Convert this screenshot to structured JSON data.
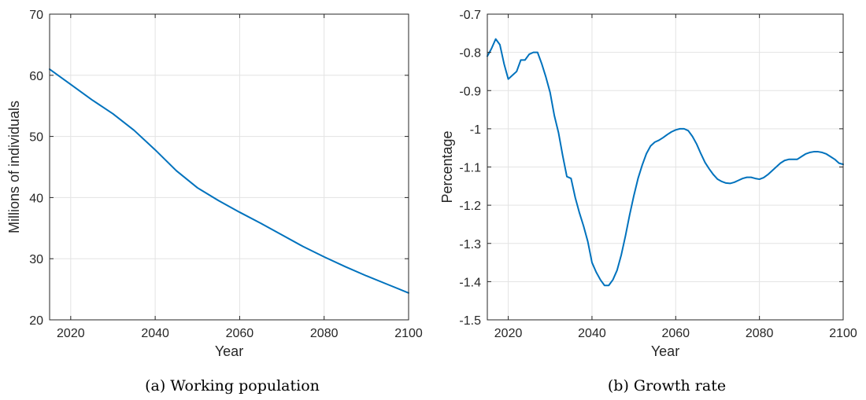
{
  "chart_data": [
    {
      "type": "line",
      "caption": "(a) Working population",
      "xlabel": "Year",
      "ylabel": "Millions of individuals",
      "xlim": [
        2015,
        2100
      ],
      "ylim": [
        20,
        70
      ],
      "xticks": [
        2020,
        2040,
        2060,
        2080,
        2100
      ],
      "yticks": [
        20,
        30,
        40,
        50,
        60,
        70
      ],
      "grid": true,
      "series": [
        {
          "color": "#0072bd",
          "x": [
            2015,
            2020,
            2025,
            2030,
            2035,
            2040,
            2045,
            2050,
            2055,
            2060,
            2065,
            2070,
            2075,
            2080,
            2085,
            2090,
            2095,
            2100
          ],
          "y": [
            61.0,
            58.5,
            56.0,
            53.7,
            51.0,
            47.8,
            44.4,
            41.6,
            39.5,
            37.6,
            35.8,
            33.9,
            32.0,
            30.3,
            28.7,
            27.2,
            25.8,
            24.4
          ]
        }
      ]
    },
    {
      "type": "line",
      "caption": "(b) Growth rate",
      "xlabel": "Year",
      "ylabel": "Percentage",
      "xlim": [
        2015,
        2100
      ],
      "ylim": [
        -1.5,
        -0.7
      ],
      "xticks": [
        2020,
        2040,
        2060,
        2080,
        2100
      ],
      "yticks": [
        -1.5,
        -1.4,
        -1.3,
        -1.2,
        -1.1,
        -1,
        -0.9,
        -0.8,
        -0.7
      ],
      "grid": true,
      "series": [
        {
          "color": "#0072bd",
          "x": [
            2015,
            2016,
            2017,
            2018,
            2019,
            2020,
            2021,
            2022,
            2023,
            2024,
            2025,
            2026,
            2027,
            2028,
            2029,
            2030,
            2031,
            2032,
            2033,
            2034,
            2035,
            2036,
            2037,
            2038,
            2039,
            2040,
            2041,
            2042,
            2043,
            2044,
            2045,
            2046,
            2047,
            2048,
            2049,
            2050,
            2051,
            2052,
            2053,
            2054,
            2055,
            2056,
            2057,
            2058,
            2059,
            2060,
            2061,
            2062,
            2063,
            2064,
            2065,
            2066,
            2067,
            2068,
            2069,
            2070,
            2071,
            2072,
            2073,
            2074,
            2075,
            2076,
            2077,
            2078,
            2079,
            2080,
            2081,
            2082,
            2083,
            2084,
            2085,
            2086,
            2087,
            2088,
            2089,
            2090,
            2091,
            2092,
            2093,
            2094,
            2095,
            2096,
            2097,
            2098,
            2099,
            2100
          ],
          "y": [
            -0.81,
            -0.79,
            -0.765,
            -0.78,
            -0.83,
            -0.87,
            -0.86,
            -0.85,
            -0.82,
            -0.82,
            -0.805,
            -0.8,
            -0.8,
            -0.83,
            -0.865,
            -0.905,
            -0.965,
            -1.01,
            -1.07,
            -1.125,
            -1.13,
            -1.18,
            -1.22,
            -1.255,
            -1.295,
            -1.35,
            -1.375,
            -1.395,
            -1.41,
            -1.41,
            -1.395,
            -1.37,
            -1.33,
            -1.28,
            -1.225,
            -1.175,
            -1.13,
            -1.095,
            -1.065,
            -1.045,
            -1.035,
            -1.03,
            -1.023,
            -1.015,
            -1.008,
            -1.003,
            -1.0,
            -1.0,
            -1.005,
            -1.02,
            -1.04,
            -1.065,
            -1.088,
            -1.105,
            -1.12,
            -1.132,
            -1.138,
            -1.142,
            -1.143,
            -1.14,
            -1.135,
            -1.13,
            -1.127,
            -1.127,
            -1.13,
            -1.132,
            -1.128,
            -1.12,
            -1.11,
            -1.1,
            -1.09,
            -1.083,
            -1.08,
            -1.08,
            -1.08,
            -1.073,
            -1.066,
            -1.062,
            -1.06,
            -1.06,
            -1.062,
            -1.066,
            -1.073,
            -1.08,
            -1.09,
            -1.093
          ]
        }
      ]
    }
  ]
}
